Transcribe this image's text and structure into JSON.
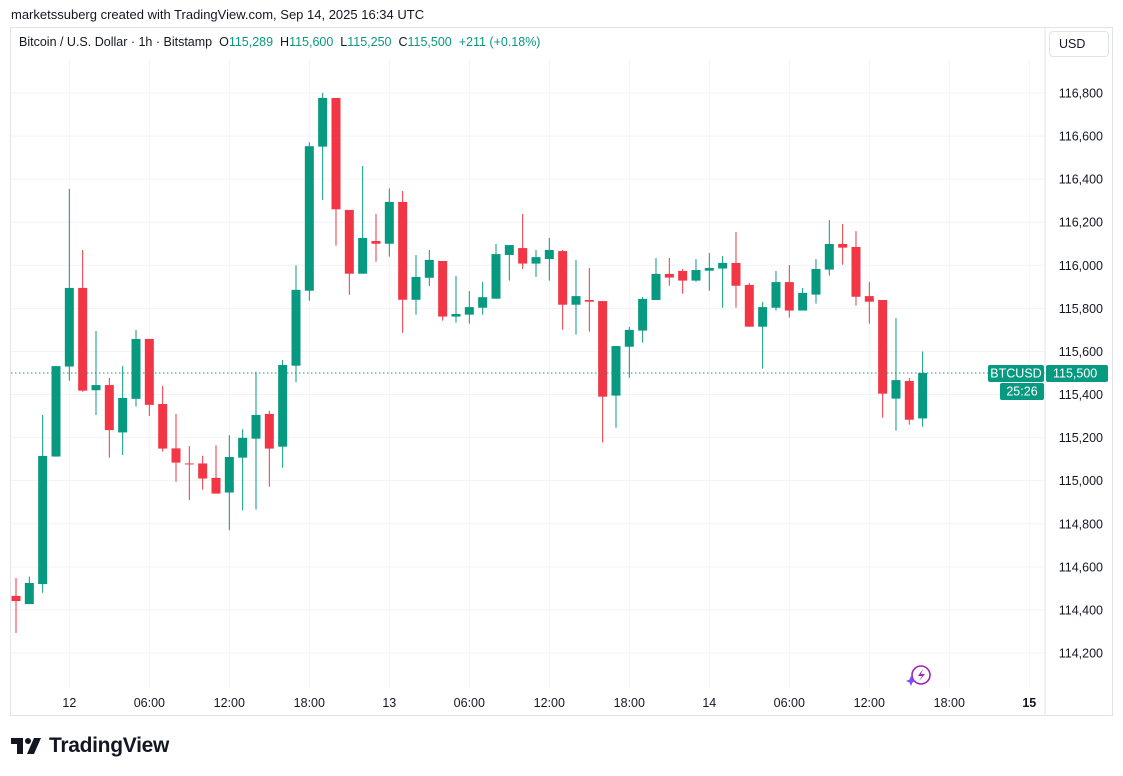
{
  "credit": "marketssuberg created with TradingView.com, Sep 14, 2025 16:34 UTC",
  "legend": {
    "symbol": "Bitcoin / U.S. Dollar · 1h · Bitstamp",
    "o_label": "O",
    "o": "115,289",
    "h_label": "H",
    "h": "115,600",
    "l_label": "L",
    "l": "115,250",
    "c_label": "C",
    "c": "115,500",
    "change": "+211 (+0.18%)"
  },
  "currency_button": "USD",
  "brand": "TradingView",
  "price_tag": {
    "symbol": "BTCUSD",
    "price": "115,500",
    "countdown": "25:26"
  },
  "colors": {
    "up": "#089981",
    "down": "#F23645",
    "accent": "#089981",
    "grid": "#f0f3fa"
  },
  "icons": [
    "tradingview-logo-icon",
    "lightning-sparkle-icon"
  ],
  "chart_data": {
    "type": "candlestick",
    "interval": "1h",
    "ylim": [
      114100,
      116900
    ],
    "grid": true,
    "y_ticks": [
      "116,800",
      "116,600",
      "116,400",
      "116,200",
      "116,000",
      "115,800",
      "115,600",
      "115,400",
      "115,200",
      "115,000",
      "114,800",
      "114,600",
      "114,400",
      "114,200"
    ],
    "y_tick_values": [
      116800,
      116600,
      116400,
      116200,
      116000,
      115800,
      115600,
      115400,
      115200,
      115000,
      114800,
      114600,
      114400,
      114200
    ],
    "x_ticks": [
      {
        "label": "12",
        "t": "2025-09-12 00:00",
        "bold": false
      },
      {
        "label": "06:00",
        "t": "2025-09-12 06:00"
      },
      {
        "label": "12:00",
        "t": "2025-09-12 12:00"
      },
      {
        "label": "18:00",
        "t": "2025-09-12 18:00"
      },
      {
        "label": "13",
        "t": "2025-09-13 00:00"
      },
      {
        "label": "06:00",
        "t": "2025-09-13 06:00"
      },
      {
        "label": "12:00",
        "t": "2025-09-13 12:00"
      },
      {
        "label": "18:00",
        "t": "2025-09-13 18:00"
      },
      {
        "label": "14",
        "t": "2025-09-14 00:00"
      },
      {
        "label": "06:00",
        "t": "2025-09-14 06:00"
      },
      {
        "label": "12:00",
        "t": "2025-09-14 12:00"
      },
      {
        "label": "18:00",
        "t": "2025-09-14 18:00"
      },
      {
        "label": "15",
        "t": "2025-09-15 00:00",
        "bold": true
      }
    ],
    "last_price": 115500,
    "candles": [
      {
        "t": "2025-09-11 20:00",
        "o": 114465,
        "h": 114548,
        "l": 114293,
        "c": 114441
      },
      {
        "t": "2025-09-11 21:00",
        "o": 114427,
        "h": 114555,
        "l": 114427,
        "c": 114525
      },
      {
        "t": "2025-09-11 22:00",
        "o": 114520,
        "h": 115305,
        "l": 114479,
        "c": 115115
      },
      {
        "t": "2025-09-11 23:00",
        "o": 115112,
        "h": 115532,
        "l": 115112,
        "c": 115532
      },
      {
        "t": "2025-09-12 00:00",
        "o": 115530,
        "h": 116354,
        "l": 115464,
        "c": 115895
      },
      {
        "t": "2025-09-12 01:00",
        "o": 115895,
        "h": 116071,
        "l": 115413,
        "c": 115418
      },
      {
        "t": "2025-09-12 02:00",
        "o": 115420,
        "h": 115695,
        "l": 115305,
        "c": 115444
      },
      {
        "t": "2025-09-12 03:00",
        "o": 115444,
        "h": 115477,
        "l": 115107,
        "c": 115235
      },
      {
        "t": "2025-09-12 04:00",
        "o": 115224,
        "h": 115532,
        "l": 115119,
        "c": 115384
      },
      {
        "t": "2025-09-12 05:00",
        "o": 115380,
        "h": 115700,
        "l": 115344,
        "c": 115658
      },
      {
        "t": "2025-09-12 06:00",
        "o": 115658,
        "h": 115658,
        "l": 115300,
        "c": 115352
      },
      {
        "t": "2025-09-12 07:00",
        "o": 115356,
        "h": 115440,
        "l": 115135,
        "c": 115149
      },
      {
        "t": "2025-09-12 08:00",
        "o": 115150,
        "h": 115310,
        "l": 114995,
        "c": 115084
      },
      {
        "t": "2025-09-12 09:00",
        "o": 115080,
        "h": 115161,
        "l": 114910,
        "c": 115078
      },
      {
        "t": "2025-09-12 10:00",
        "o": 115080,
        "h": 115116,
        "l": 114958,
        "c": 115010
      },
      {
        "t": "2025-09-12 11:00",
        "o": 115013,
        "h": 115164,
        "l": 114940,
        "c": 114940
      },
      {
        "t": "2025-09-12 12:00",
        "o": 114945,
        "h": 115211,
        "l": 114770,
        "c": 115110
      },
      {
        "t": "2025-09-12 13:00",
        "o": 115107,
        "h": 115239,
        "l": 114862,
        "c": 115199
      },
      {
        "t": "2025-09-12 14:00",
        "o": 115195,
        "h": 115506,
        "l": 114866,
        "c": 115305
      },
      {
        "t": "2025-09-12 15:00",
        "o": 115310,
        "h": 115325,
        "l": 114972,
        "c": 115149
      },
      {
        "t": "2025-09-12 16:00",
        "o": 115158,
        "h": 115560,
        "l": 115060,
        "c": 115537
      },
      {
        "t": "2025-09-12 17:00",
        "o": 115534,
        "h": 116000,
        "l": 115457,
        "c": 115886
      },
      {
        "t": "2025-09-12 18:00",
        "o": 115882,
        "h": 116571,
        "l": 115836,
        "c": 116553
      },
      {
        "t": "2025-09-12 19:00",
        "o": 116551,
        "h": 116800,
        "l": 116303,
        "c": 116777
      },
      {
        "t": "2025-09-12 20:00",
        "o": 116777,
        "h": 116777,
        "l": 116091,
        "c": 116260
      },
      {
        "t": "2025-09-12 21:00",
        "o": 116257,
        "h": 116257,
        "l": 115863,
        "c": 115961
      },
      {
        "t": "2025-09-12 22:00",
        "o": 115961,
        "h": 116461,
        "l": 115961,
        "c": 116127
      },
      {
        "t": "2025-09-12 23:00",
        "o": 116113,
        "h": 116238,
        "l": 116016,
        "c": 116100
      },
      {
        "t": "2025-09-13 00:00",
        "o": 116100,
        "h": 116357,
        "l": 116040,
        "c": 116294
      },
      {
        "t": "2025-09-13 01:00",
        "o": 116294,
        "h": 116345,
        "l": 115687,
        "c": 115840
      },
      {
        "t": "2025-09-13 02:00",
        "o": 115840,
        "h": 116048,
        "l": 115771,
        "c": 115946
      },
      {
        "t": "2025-09-13 03:00",
        "o": 115942,
        "h": 116071,
        "l": 115904,
        "c": 116025
      },
      {
        "t": "2025-09-13 04:00",
        "o": 116020,
        "h": 116020,
        "l": 115743,
        "c": 115762
      },
      {
        "t": "2025-09-13 05:00",
        "o": 115762,
        "h": 115950,
        "l": 115734,
        "c": 115774
      },
      {
        "t": "2025-09-13 06:00",
        "o": 115771,
        "h": 115881,
        "l": 115729,
        "c": 115806
      },
      {
        "t": "2025-09-13 07:00",
        "o": 115803,
        "h": 115923,
        "l": 115771,
        "c": 115852
      },
      {
        "t": "2025-09-13 08:00",
        "o": 115845,
        "h": 116099,
        "l": 115845,
        "c": 116052
      },
      {
        "t": "2025-09-13 09:00",
        "o": 116048,
        "h": 116094,
        "l": 115929,
        "c": 116094
      },
      {
        "t": "2025-09-13 10:00",
        "o": 116080,
        "h": 116238,
        "l": 115983,
        "c": 116008
      },
      {
        "t": "2025-09-13 11:00",
        "o": 116008,
        "h": 116071,
        "l": 115946,
        "c": 116038
      },
      {
        "t": "2025-09-13 12:00",
        "o": 116029,
        "h": 116127,
        "l": 115929,
        "c": 116071
      },
      {
        "t": "2025-09-13 13:00",
        "o": 116066,
        "h": 116071,
        "l": 115701,
        "c": 115817
      },
      {
        "t": "2025-09-13 14:00",
        "o": 115817,
        "h": 116025,
        "l": 115678,
        "c": 115857
      },
      {
        "t": "2025-09-13 15:00",
        "o": 115839,
        "h": 115988,
        "l": 115692,
        "c": 115831
      },
      {
        "t": "2025-09-13 16:00",
        "o": 115834,
        "h": 115834,
        "l": 115177,
        "c": 115390
      },
      {
        "t": "2025-09-13 17:00",
        "o": 115395,
        "h": 115625,
        "l": 115246,
        "c": 115625
      },
      {
        "t": "2025-09-13 18:00",
        "o": 115622,
        "h": 115714,
        "l": 115478,
        "c": 115700
      },
      {
        "t": "2025-09-13 19:00",
        "o": 115697,
        "h": 115853,
        "l": 115641,
        "c": 115844
      },
      {
        "t": "2025-09-13 20:00",
        "o": 115839,
        "h": 116034,
        "l": 115839,
        "c": 115960
      },
      {
        "t": "2025-09-13 21:00",
        "o": 115960,
        "h": 116034,
        "l": 115905,
        "c": 115943
      },
      {
        "t": "2025-09-13 22:00",
        "o": 115974,
        "h": 115983,
        "l": 115868,
        "c": 115929
      },
      {
        "t": "2025-09-13 23:00",
        "o": 115929,
        "h": 116029,
        "l": 115924,
        "c": 115978
      },
      {
        "t": "2025-09-14 00:00",
        "o": 115975,
        "h": 116057,
        "l": 115882,
        "c": 115988
      },
      {
        "t": "2025-09-14 01:00",
        "o": 115985,
        "h": 116043,
        "l": 115803,
        "c": 116011
      },
      {
        "t": "2025-09-14 02:00",
        "o": 116011,
        "h": 116155,
        "l": 115803,
        "c": 115905
      },
      {
        "t": "2025-09-14 03:00",
        "o": 115909,
        "h": 115918,
        "l": 115715,
        "c": 115715
      },
      {
        "t": "2025-09-14 04:00",
        "o": 115715,
        "h": 115830,
        "l": 115520,
        "c": 115806
      },
      {
        "t": "2025-09-14 05:00",
        "o": 115803,
        "h": 115974,
        "l": 115790,
        "c": 115922
      },
      {
        "t": "2025-09-14 06:00",
        "o": 115922,
        "h": 116001,
        "l": 115757,
        "c": 115790
      },
      {
        "t": "2025-09-14 07:00",
        "o": 115790,
        "h": 115895,
        "l": 115790,
        "c": 115872
      },
      {
        "t": "2025-09-14 08:00",
        "o": 115864,
        "h": 116029,
        "l": 115822,
        "c": 115983
      },
      {
        "t": "2025-09-14 09:00",
        "o": 115980,
        "h": 116210,
        "l": 115952,
        "c": 116099
      },
      {
        "t": "2025-09-14 10:00",
        "o": 116099,
        "h": 116192,
        "l": 116003,
        "c": 116082
      },
      {
        "t": "2025-09-14 11:00",
        "o": 116085,
        "h": 116159,
        "l": 115813,
        "c": 115854
      },
      {
        "t": "2025-09-14 12:00",
        "o": 115857,
        "h": 115923,
        "l": 115729,
        "c": 115831
      },
      {
        "t": "2025-09-14 13:00",
        "o": 115839,
        "h": 115839,
        "l": 115293,
        "c": 115404
      },
      {
        "t": "2025-09-14 14:00",
        "o": 115381,
        "h": 115755,
        "l": 115232,
        "c": 115467
      },
      {
        "t": "2025-09-14 15:00",
        "o": 115463,
        "h": 115477,
        "l": 115260,
        "c": 115283
      },
      {
        "t": "2025-09-14 16:00",
        "o": 115289,
        "h": 115600,
        "l": 115250,
        "c": 115500
      }
    ]
  }
}
